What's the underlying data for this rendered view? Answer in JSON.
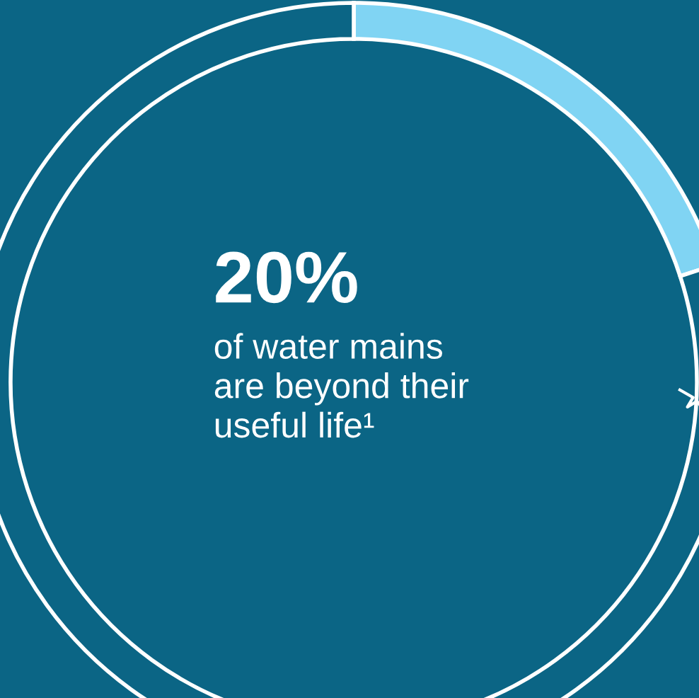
{
  "chart_data": {
    "type": "donut",
    "categories": [
      null,
      null
    ],
    "values": [
      20,
      80
    ],
    "colors": [
      "#80d4f3",
      "#0b6585"
    ],
    "annotations": [
      "20%",
      "of water mains\nare beyond their\nuseful life¹"
    ]
  }
}
